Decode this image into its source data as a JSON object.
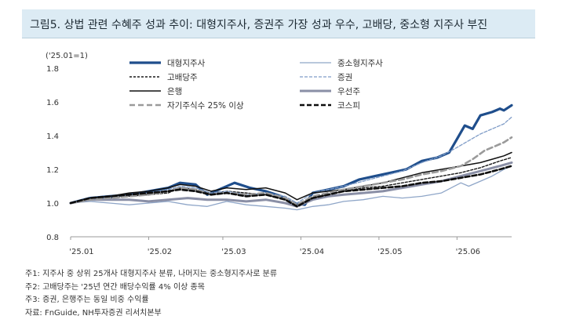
{
  "title": "그림5. 상법 관련 수혜주 성과 추이: 대형지주사, 증권주 가장 성과 우수, 고배당, 중소형 지주사 부진",
  "notes": [
    "주1: 지주사 중 상위 25개사 대형지주사 분류, 나머지는 중소형지주사로 분류",
    "주2: 고배당주는 '25년 연간 배당수익률 4% 이상 종목",
    "주3: 증권, 은행주는 동일 비중 수익률",
    "자료: FnGuide, NH투자증권 리서치본부"
  ],
  "chart_data": {
    "type": "line",
    "unit_label": "('25.01=1)",
    "ylim": [
      0.8,
      1.8
    ],
    "yticks": [
      "0.8",
      "1.0",
      "1.2",
      "1.4",
      "1.6",
      "1.8"
    ],
    "xlim": [
      0,
      113
    ],
    "xticks": [
      {
        "label": "'25.01",
        "x": 0
      },
      {
        "label": "'25.02",
        "x": 20
      },
      {
        "label": "'25.03",
        "x": 39
      },
      {
        "label": "'25.04",
        "x": 59
      },
      {
        "label": "'25.05",
        "x": 79
      },
      {
        "label": "'25.06",
        "x": 99
      }
    ],
    "legend_position": "top",
    "grid": false,
    "series": [
      {
        "name": "대형지주사",
        "color": "#1f4e8c",
        "width": 3.2,
        "dash": "",
        "points": [
          [
            0,
            1.0
          ],
          [
            5,
            1.03
          ],
          [
            10,
            1.04
          ],
          [
            15,
            1.05
          ],
          [
            20,
            1.07
          ],
          [
            25,
            1.09
          ],
          [
            28,
            1.12
          ],
          [
            32,
            1.11
          ],
          [
            35,
            1.05
          ],
          [
            38,
            1.08
          ],
          [
            42,
            1.12
          ],
          [
            46,
            1.09
          ],
          [
            50,
            1.07
          ],
          [
            54,
            1.04
          ],
          [
            57,
            1.0
          ],
          [
            60,
            0.99
          ],
          [
            62,
            1.06
          ],
          [
            66,
            1.08
          ],
          [
            70,
            1.1
          ],
          [
            74,
            1.14
          ],
          [
            78,
            1.16
          ],
          [
            82,
            1.18
          ],
          [
            86,
            1.2
          ],
          [
            90,
            1.25
          ],
          [
            94,
            1.27
          ],
          [
            97,
            1.3
          ],
          [
            99,
            1.38
          ],
          [
            101,
            1.46
          ],
          [
            103,
            1.44
          ],
          [
            105,
            1.52
          ],
          [
            108,
            1.54
          ],
          [
            110,
            1.56
          ],
          [
            111,
            1.55
          ],
          [
            113,
            1.58
          ]
        ]
      },
      {
        "name": "중소형지주사",
        "color": "#8fa6c8",
        "width": 1.3,
        "dash": "",
        "points": [
          [
            0,
            1.0
          ],
          [
            5,
            1.01
          ],
          [
            10,
            1.0
          ],
          [
            15,
            0.99
          ],
          [
            20,
            1.0
          ],
          [
            25,
            1.01
          ],
          [
            30,
            0.99
          ],
          [
            35,
            0.98
          ],
          [
            40,
            1.01
          ],
          [
            45,
            0.99
          ],
          [
            50,
            0.98
          ],
          [
            55,
            0.97
          ],
          [
            58,
            0.96
          ],
          [
            62,
            0.98
          ],
          [
            66,
            0.99
          ],
          [
            70,
            1.01
          ],
          [
            75,
            1.02
          ],
          [
            80,
            1.04
          ],
          [
            85,
            1.03
          ],
          [
            90,
            1.04
          ],
          [
            95,
            1.06
          ],
          [
            100,
            1.12
          ],
          [
            102,
            1.1
          ],
          [
            105,
            1.13
          ],
          [
            108,
            1.16
          ],
          [
            111,
            1.2
          ],
          [
            113,
            1.22
          ]
        ]
      },
      {
        "name": "고배당주",
        "color": "#1a1a1a",
        "width": 1.4,
        "dash": "3,2",
        "points": [
          [
            0,
            1.0
          ],
          [
            5,
            1.02
          ],
          [
            10,
            1.03
          ],
          [
            15,
            1.04
          ],
          [
            20,
            1.05
          ],
          [
            25,
            1.06
          ],
          [
            28,
            1.09
          ],
          [
            32,
            1.08
          ],
          [
            36,
            1.06
          ],
          [
            40,
            1.07
          ],
          [
            45,
            1.06
          ],
          [
            50,
            1.05
          ],
          [
            55,
            1.02
          ],
          [
            58,
            0.99
          ],
          [
            62,
            1.03
          ],
          [
            66,
            1.05
          ],
          [
            70,
            1.07
          ],
          [
            75,
            1.09
          ],
          [
            80,
            1.1
          ],
          [
            85,
            1.12
          ],
          [
            90,
            1.14
          ],
          [
            95,
            1.16
          ],
          [
            100,
            1.18
          ],
          [
            105,
            1.21
          ],
          [
            110,
            1.25
          ],
          [
            113,
            1.27
          ]
        ]
      },
      {
        "name": "증권",
        "color": "#7f9cc7",
        "width": 1.3,
        "dash": "4,2",
        "points": [
          [
            0,
            1.0
          ],
          [
            5,
            1.02
          ],
          [
            10,
            1.03
          ],
          [
            15,
            1.05
          ],
          [
            20,
            1.06
          ],
          [
            25,
            1.08
          ],
          [
            28,
            1.1
          ],
          [
            32,
            1.09
          ],
          [
            36,
            1.06
          ],
          [
            40,
            1.07
          ],
          [
            45,
            1.05
          ],
          [
            50,
            1.06
          ],
          [
            55,
            1.04
          ],
          [
            58,
            1.0
          ],
          [
            62,
            1.06
          ],
          [
            66,
            1.08
          ],
          [
            70,
            1.1
          ],
          [
            75,
            1.13
          ],
          [
            80,
            1.16
          ],
          [
            85,
            1.19
          ],
          [
            90,
            1.24
          ],
          [
            95,
            1.28
          ],
          [
            99,
            1.33
          ],
          [
            102,
            1.37
          ],
          [
            105,
            1.41
          ],
          [
            108,
            1.44
          ],
          [
            111,
            1.47
          ],
          [
            113,
            1.51
          ]
        ]
      },
      {
        "name": "은행",
        "color": "#111111",
        "width": 1.5,
        "dash": "",
        "points": [
          [
            0,
            1.0
          ],
          [
            5,
            1.03
          ],
          [
            10,
            1.04
          ],
          [
            15,
            1.06
          ],
          [
            20,
            1.07
          ],
          [
            25,
            1.09
          ],
          [
            28,
            1.11
          ],
          [
            32,
            1.1
          ],
          [
            36,
            1.07
          ],
          [
            40,
            1.09
          ],
          [
            45,
            1.08
          ],
          [
            50,
            1.09
          ],
          [
            55,
            1.06
          ],
          [
            58,
            1.02
          ],
          [
            62,
            1.06
          ],
          [
            66,
            1.07
          ],
          [
            70,
            1.08
          ],
          [
            75,
            1.1
          ],
          [
            80,
            1.12
          ],
          [
            85,
            1.15
          ],
          [
            90,
            1.18
          ],
          [
            95,
            1.2
          ],
          [
            100,
            1.22
          ],
          [
            105,
            1.24
          ],
          [
            108,
            1.26
          ],
          [
            111,
            1.28
          ],
          [
            113,
            1.3
          ]
        ]
      },
      {
        "name": "우선주",
        "color": "#8a8fa6",
        "width": 3.0,
        "dash": "",
        "points": [
          [
            0,
            1.0
          ],
          [
            5,
            1.02
          ],
          [
            10,
            1.02
          ],
          [
            15,
            1.02
          ],
          [
            20,
            1.01
          ],
          [
            25,
            1.02
          ],
          [
            30,
            1.03
          ],
          [
            35,
            1.02
          ],
          [
            40,
            1.02
          ],
          [
            45,
            1.01
          ],
          [
            50,
            1.02
          ],
          [
            55,
            1.0
          ],
          [
            58,
            0.98
          ],
          [
            62,
            1.02
          ],
          [
            66,
            1.04
          ],
          [
            70,
            1.05
          ],
          [
            75,
            1.06
          ],
          [
            80,
            1.07
          ],
          [
            85,
            1.09
          ],
          [
            90,
            1.11
          ],
          [
            95,
            1.13
          ],
          [
            100,
            1.16
          ],
          [
            105,
            1.19
          ],
          [
            110,
            1.22
          ],
          [
            113,
            1.24
          ]
        ]
      },
      {
        "name": "자기주식수 25% 이상",
        "color": "#9a9a9a",
        "width": 2.6,
        "dash": "7,4",
        "points": [
          [
            0,
            1.0
          ],
          [
            5,
            1.02
          ],
          [
            10,
            1.03
          ],
          [
            15,
            1.04
          ],
          [
            20,
            1.05
          ],
          [
            25,
            1.07
          ],
          [
            28,
            1.09
          ],
          [
            32,
            1.08
          ],
          [
            36,
            1.05
          ],
          [
            40,
            1.06
          ],
          [
            45,
            1.05
          ],
          [
            50,
            1.06
          ],
          [
            55,
            1.03
          ],
          [
            58,
            0.99
          ],
          [
            62,
            1.04
          ],
          [
            66,
            1.06
          ],
          [
            70,
            1.08
          ],
          [
            75,
            1.1
          ],
          [
            80,
            1.12
          ],
          [
            85,
            1.14
          ],
          [
            90,
            1.17
          ],
          [
            95,
            1.19
          ],
          [
            100,
            1.22
          ],
          [
            103,
            1.26
          ],
          [
            106,
            1.31
          ],
          [
            109,
            1.34
          ],
          [
            111,
            1.36
          ],
          [
            113,
            1.39
          ]
        ]
      },
      {
        "name": "코스피",
        "color": "#0d0d0d",
        "width": 2.6,
        "dash": "6,3",
        "points": [
          [
            0,
            1.0
          ],
          [
            5,
            1.03
          ],
          [
            10,
            1.04
          ],
          [
            15,
            1.05
          ],
          [
            20,
            1.06
          ],
          [
            25,
            1.07
          ],
          [
            28,
            1.08
          ],
          [
            32,
            1.07
          ],
          [
            36,
            1.05
          ],
          [
            40,
            1.06
          ],
          [
            45,
            1.04
          ],
          [
            50,
            1.05
          ],
          [
            55,
            1.02
          ],
          [
            58,
            0.98
          ],
          [
            62,
            1.03
          ],
          [
            66,
            1.05
          ],
          [
            70,
            1.07
          ],
          [
            75,
            1.08
          ],
          [
            80,
            1.09
          ],
          [
            85,
            1.1
          ],
          [
            90,
            1.12
          ],
          [
            95,
            1.13
          ],
          [
            100,
            1.15
          ],
          [
            105,
            1.17
          ],
          [
            110,
            1.2
          ],
          [
            113,
            1.22
          ]
        ]
      }
    ]
  }
}
